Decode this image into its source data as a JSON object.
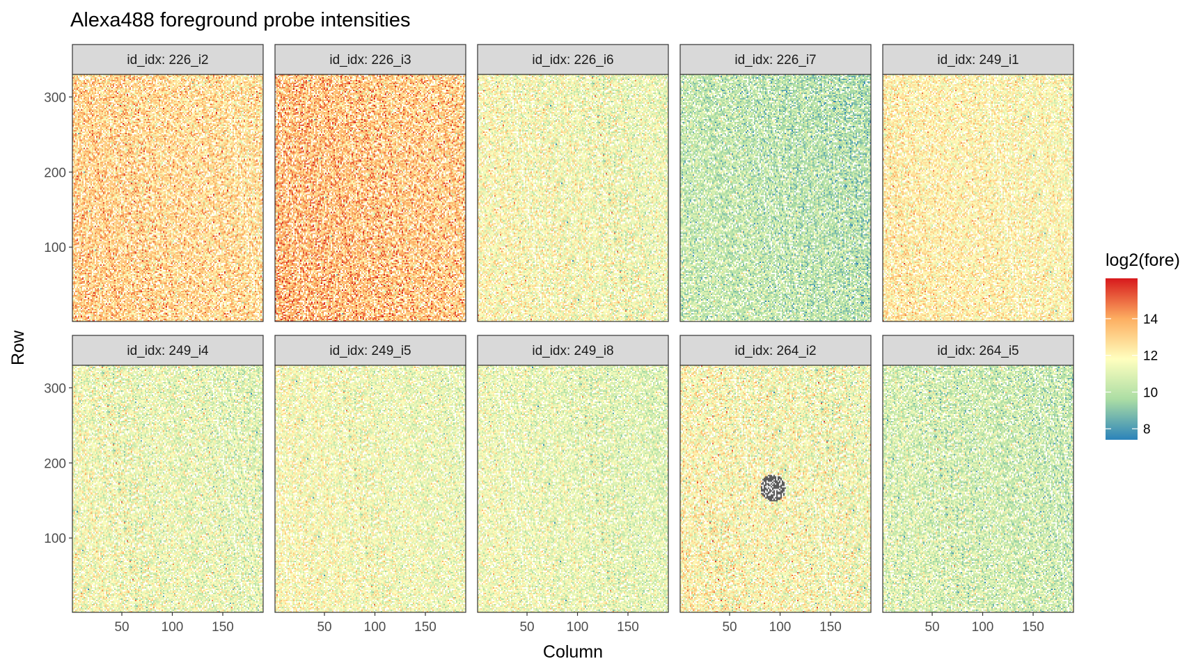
{
  "chart_data": {
    "type": "heatmap",
    "title": "Alexa488 foreground probe intensities",
    "xlabel": "Column",
    "ylabel": "Row",
    "facet_prefix": "id_idx: ",
    "facet_layout": {
      "rows": 2,
      "cols": 5
    },
    "x_range": [
      1,
      190
    ],
    "y_range": [
      1,
      330
    ],
    "x_ticks": [
      50,
      100,
      150
    ],
    "y_ticks": [
      100,
      200,
      300
    ],
    "legend": {
      "title": "log2(fore)",
      "position": "right",
      "ticks": [
        8,
        10,
        12,
        14
      ],
      "range": [
        7.4,
        16.2
      ],
      "palette": [
        "#2B83BA",
        "#ABDDA4",
        "#FFFFBF",
        "#FDAE61",
        "#D7191C"
      ]
    },
    "panels": [
      {
        "label": "226_i2",
        "mean_log2": 12.9,
        "spread": 1.0
      },
      {
        "label": "226_i3",
        "mean_log2": 13.4,
        "spread": 1.1
      },
      {
        "label": "226_i6",
        "mean_log2": 11.6,
        "spread": 0.9
      },
      {
        "label": "226_i7",
        "mean_log2": 10.1,
        "spread": 0.9
      },
      {
        "label": "249_i1",
        "mean_log2": 12.1,
        "spread": 0.8
      },
      {
        "label": "249_i4",
        "mean_log2": 11.3,
        "spread": 0.9
      },
      {
        "label": "249_i5",
        "mean_log2": 11.5,
        "spread": 0.8
      },
      {
        "label": "249_i8",
        "mean_log2": 11.2,
        "spread": 0.8
      },
      {
        "label": "264_i2",
        "mean_log2": 11.7,
        "spread": 1.0,
        "missing_region": {
          "col_range": [
            80,
            105
          ],
          "row_range": [
            150,
            185
          ]
        }
      },
      {
        "label": "264_i5",
        "mean_log2": 10.6,
        "spread": 0.9
      }
    ]
  }
}
